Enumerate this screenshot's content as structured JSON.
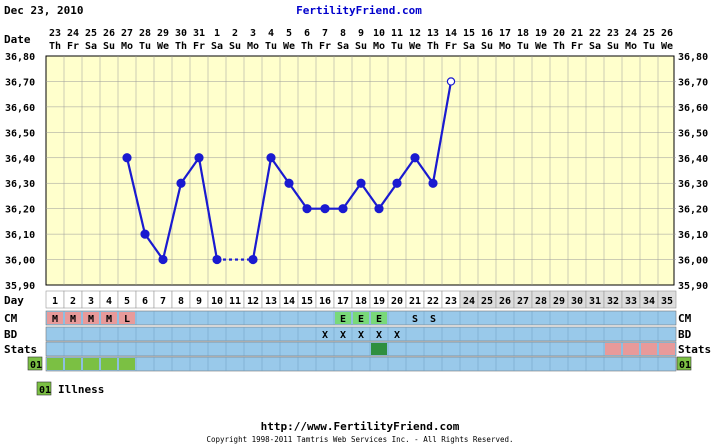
{
  "header": {
    "date": "Dec 23, 2010",
    "brand": "FertilityFriend.com"
  },
  "labels": {
    "date_label": "Date",
    "day_label": "Day",
    "rows": [
      "CM",
      "BD",
      "Stats"
    ],
    "custom_code": "01"
  },
  "legend": {
    "code": "01",
    "label": "Illness"
  },
  "footer": {
    "url": "http://www.FertilityFriend.com",
    "copyright": "Copyright 1998-2011 Tamtris Web Services Inc. - All Rights Reserved."
  },
  "colors": {
    "line": "#1a1ad0",
    "chart_bg": "#ffffcc",
    "band_blue": "#99c9ea",
    "menses": "#e89a9a",
    "fertile": "#79d979",
    "intercourse_stat": "#2f8f3f",
    "custom_green": "#7bc043",
    "grid": "#9a9a9a",
    "brand_blue": "#0000cc"
  },
  "chart_data": {
    "type": "line",
    "title": "",
    "xlabel": "Day",
    "ylabel": "",
    "ylim": [
      35.9,
      36.8
    ],
    "yticks": [
      "35,90",
      "36,00",
      "36,10",
      "36,20",
      "36,30",
      "36,40",
      "36,50",
      "36,60",
      "36,70",
      "36,80"
    ],
    "ytick_values": [
      35.9,
      36.0,
      36.1,
      36.2,
      36.3,
      36.4,
      36.5,
      36.6,
      36.7,
      36.8
    ],
    "dates": [
      "23",
      "24",
      "25",
      "26",
      "27",
      "28",
      "29",
      "30",
      "31",
      "1",
      "2",
      "3",
      "4",
      "5",
      "6",
      "7",
      "8",
      "9",
      "10",
      "11",
      "12",
      "13",
      "14",
      "15",
      "16",
      "17",
      "18",
      "19",
      "20",
      "21",
      "22",
      "23",
      "24",
      "25",
      "26"
    ],
    "weekdays": [
      "Th",
      "Fr",
      "Sa",
      "Su",
      "Mo",
      "Tu",
      "We",
      "Th",
      "Fr",
      "Sa",
      "Su",
      "Mo",
      "Tu",
      "We",
      "Th",
      "Fr",
      "Sa",
      "Su",
      "Mo",
      "Tu",
      "We",
      "Th",
      "Fr",
      "Sa",
      "Su",
      "Mo",
      "Tu",
      "We",
      "Th",
      "Fr",
      "Sa",
      "Su",
      "Mo",
      "Tu",
      "We"
    ],
    "days": [
      1,
      2,
      3,
      4,
      5,
      6,
      7,
      8,
      9,
      10,
      11,
      12,
      13,
      14,
      15,
      16,
      17,
      18,
      19,
      20,
      21,
      22,
      23,
      24,
      25,
      26,
      27,
      28,
      29,
      30,
      31,
      32,
      33,
      34,
      35
    ],
    "temperatures": [
      null,
      null,
      null,
      null,
      36.4,
      36.1,
      36.0,
      36.3,
      36.4,
      36.0,
      null,
      36.0,
      36.4,
      36.3,
      36.2,
      36.2,
      36.2,
      36.3,
      36.2,
      36.3,
      36.4,
      36.3,
      36.7,
      null,
      null,
      null,
      null,
      null,
      null,
      null,
      null,
      null,
      null,
      null,
      null
    ],
    "open_points": [
      23
    ],
    "dashed_gaps": [
      [
        10,
        12
      ]
    ],
    "cm": [
      "M",
      "M",
      "M",
      "M",
      "L",
      "",
      "",
      "",
      "",
      "",
      "",
      "",
      "",
      "",
      "",
      "",
      "E",
      "E",
      "E",
      "",
      "S",
      "S",
      "",
      "",
      "",
      "",
      "",
      "",
      "",
      "",
      "",
      "",
      "",
      "",
      ""
    ],
    "bd": [
      "",
      "",
      "",
      "",
      "",
      "",
      "",
      "",
      "",
      "",
      "",
      "",
      "",
      "",
      "",
      "X",
      "X",
      "X",
      "X",
      "X",
      "",
      "",
      "",
      "",
      "",
      "",
      "",
      "",
      "",
      "",
      "",
      "",
      "",
      "",
      ""
    ],
    "stats": [
      "",
      "",
      "",
      "",
      "",
      "",
      "",
      "",
      "",
      "",
      "",
      "",
      "",
      "",
      "",
      "",
      "",
      "",
      "fertile",
      "",
      "",
      "",
      "",
      "",
      "",
      "",
      "",
      "",
      "",
      "",
      "",
      "menses",
      "menses",
      "menses",
      "menses"
    ],
    "custom": [
      "01",
      "01",
      "01",
      "01",
      "01",
      "",
      "",
      "",
      "",
      "",
      "",
      "",
      "",
      "",
      "",
      "",
      "",
      "",
      "",
      "",
      "",
      "",
      "",
      "",
      "",
      "",
      "",
      "",
      "",
      "",
      "",
      "",
      "",
      "",
      ""
    ]
  }
}
